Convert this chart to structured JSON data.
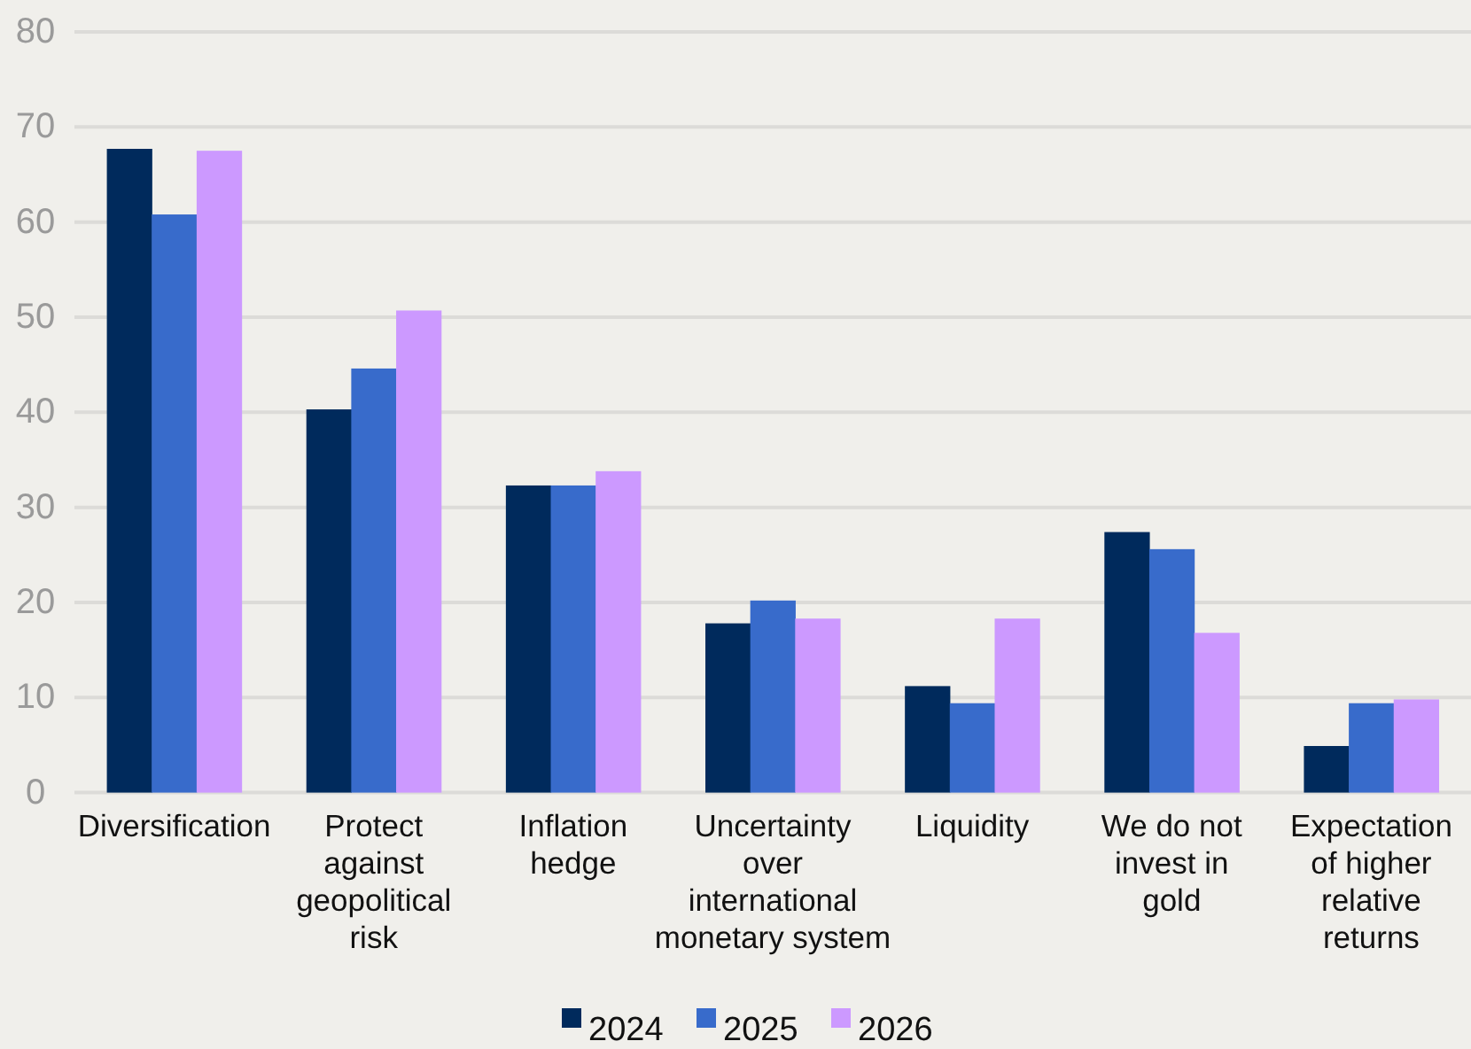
{
  "chart_data": {
    "type": "bar",
    "categories": [
      "Diversification",
      "Protect\nagainst\ngeopolitical\nrisk",
      "Inflation\nhedge",
      "Uncertainty\nover\ninternational\nmonetary system",
      "Liquidity",
      "We do not\ninvest in\ngold",
      "Expectation\nof higher\nrelative\nreturns"
    ],
    "series": [
      {
        "name": "2024",
        "color": "#002a5c",
        "values": [
          67.7,
          40.3,
          32.3,
          17.8,
          11.2,
          27.4,
          4.9
        ]
      },
      {
        "name": "2025",
        "color": "#386bcb",
        "values": [
          60.8,
          44.6,
          32.3,
          20.2,
          9.4,
          25.6,
          9.4
        ]
      },
      {
        "name": "2026",
        "color": "#cc99ff",
        "values": [
          67.5,
          50.7,
          33.8,
          18.3,
          18.3,
          16.8,
          9.8
        ]
      }
    ],
    "ylim": [
      0,
      80
    ],
    "yticks": [
      0,
      10,
      20,
      30,
      40,
      50,
      60,
      70,
      80
    ],
    "grid": "y",
    "legend": "bottom"
  }
}
